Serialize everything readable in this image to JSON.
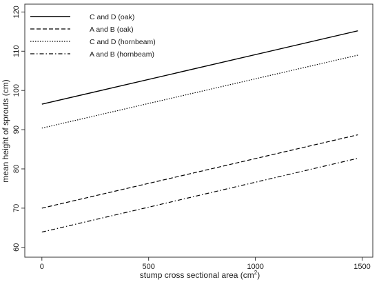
{
  "chart_data": {
    "type": "line",
    "title": "",
    "xlabel": "stump cross sectional area (cm",
    "xlabel_superscript": "2",
    "xlabel_suffix": ")",
    "ylabel": "mean height of sprouts (cm)",
    "xlim": [
      -80,
      1550
    ],
    "ylim": [
      57.5,
      122
    ],
    "xticks": [
      0,
      500,
      1000,
      1500
    ],
    "yticks": [
      60,
      70,
      80,
      90,
      100,
      110,
      120
    ],
    "grid": false,
    "legend_position": "top-left",
    "series": [
      {
        "name": "C and D (oak)",
        "line_style": "solid",
        "x": [
          0,
          1480
        ],
        "y": [
          96.5,
          115.2
        ]
      },
      {
        "name": "A and B (oak)",
        "line_style": "dashed",
        "x": [
          0,
          1480
        ],
        "y": [
          70.0,
          88.7
        ]
      },
      {
        "name": "C and D (hornbeam)",
        "line_style": "dotted",
        "x": [
          0,
          1480
        ],
        "y": [
          90.4,
          109.0
        ]
      },
      {
        "name": "A and B (hornbeam)",
        "line_style": "dashdot",
        "x": [
          0,
          1480
        ],
        "y": [
          63.9,
          82.7
        ]
      }
    ],
    "colors": {
      "line": "#000000",
      "axis": "#333333",
      "text": "#1a1a1a"
    }
  }
}
